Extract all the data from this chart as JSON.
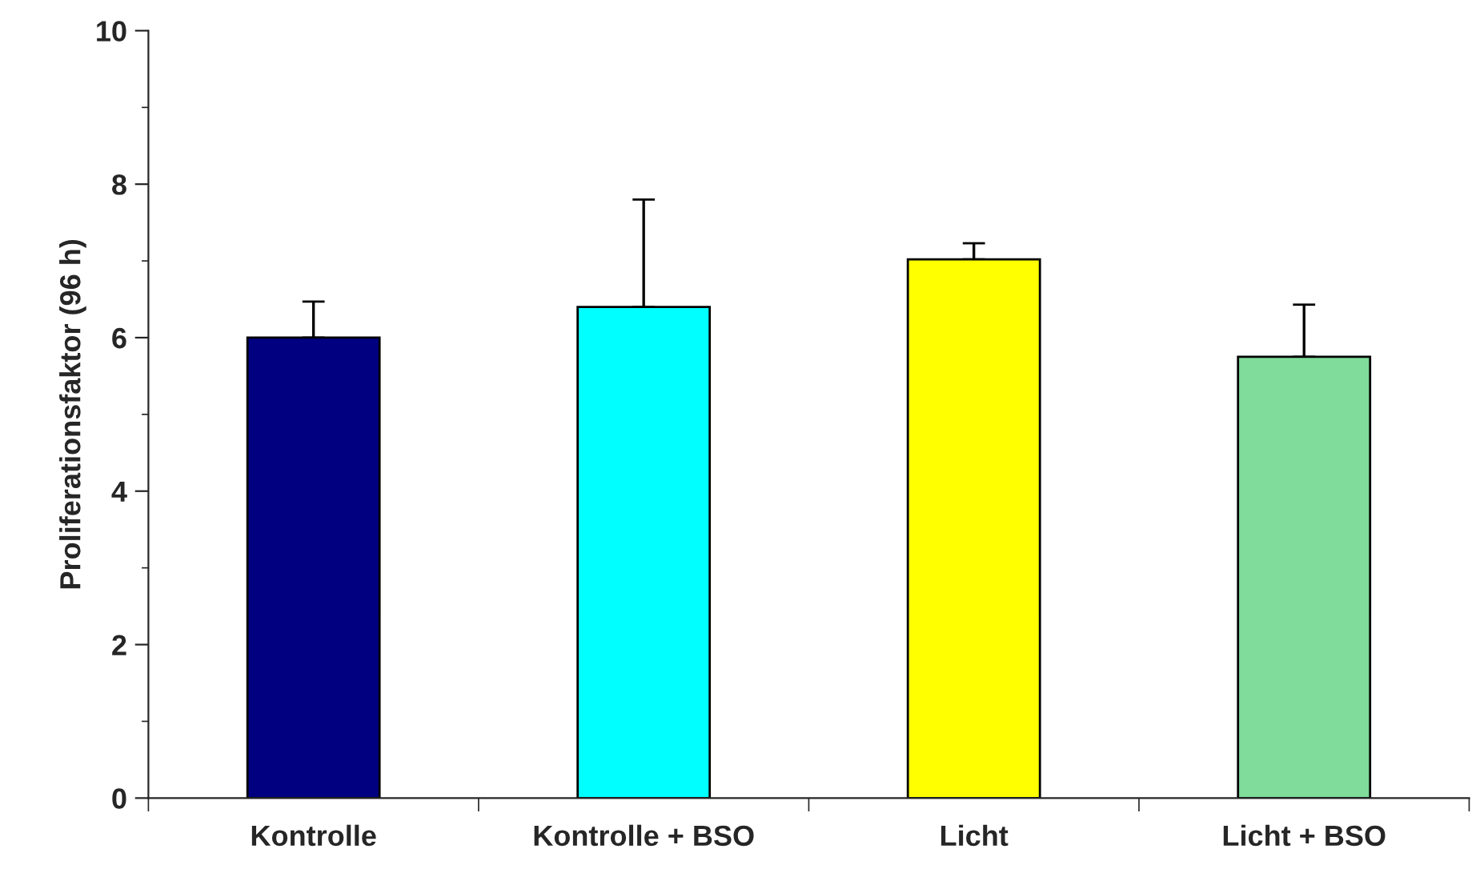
{
  "chart_data": {
    "type": "bar",
    "ylabel": "Proliferationsfaktor (96 h)",
    "categories": [
      "Kontrolle",
      "Kontrolle + BSO",
      "Licht",
      "Licht + BSO"
    ],
    "values": [
      6.0,
      6.4,
      7.02,
      5.75
    ],
    "colors": [
      "#000080",
      "#00ffff",
      "#ffff00",
      "#7fdc9a"
    ],
    "errors": [
      [
        6.0,
        6.47
      ],
      [
        6.4,
        7.8
      ],
      [
        7.02,
        7.23
      ],
      [
        5.75,
        6.43
      ]
    ],
    "ylim": [
      0,
      10
    ],
    "yticks": [
      0,
      {
        "value": 1,
        "label": null
      },
      2,
      {
        "value": 3,
        "label": null
      },
      4,
      {
        "value": 5,
        "label": null
      },
      6,
      {
        "value": 7,
        "label": null
      },
      8,
      {
        "value": 9,
        "label": null
      },
      10
    ],
    "grid": false,
    "legend": false
  }
}
